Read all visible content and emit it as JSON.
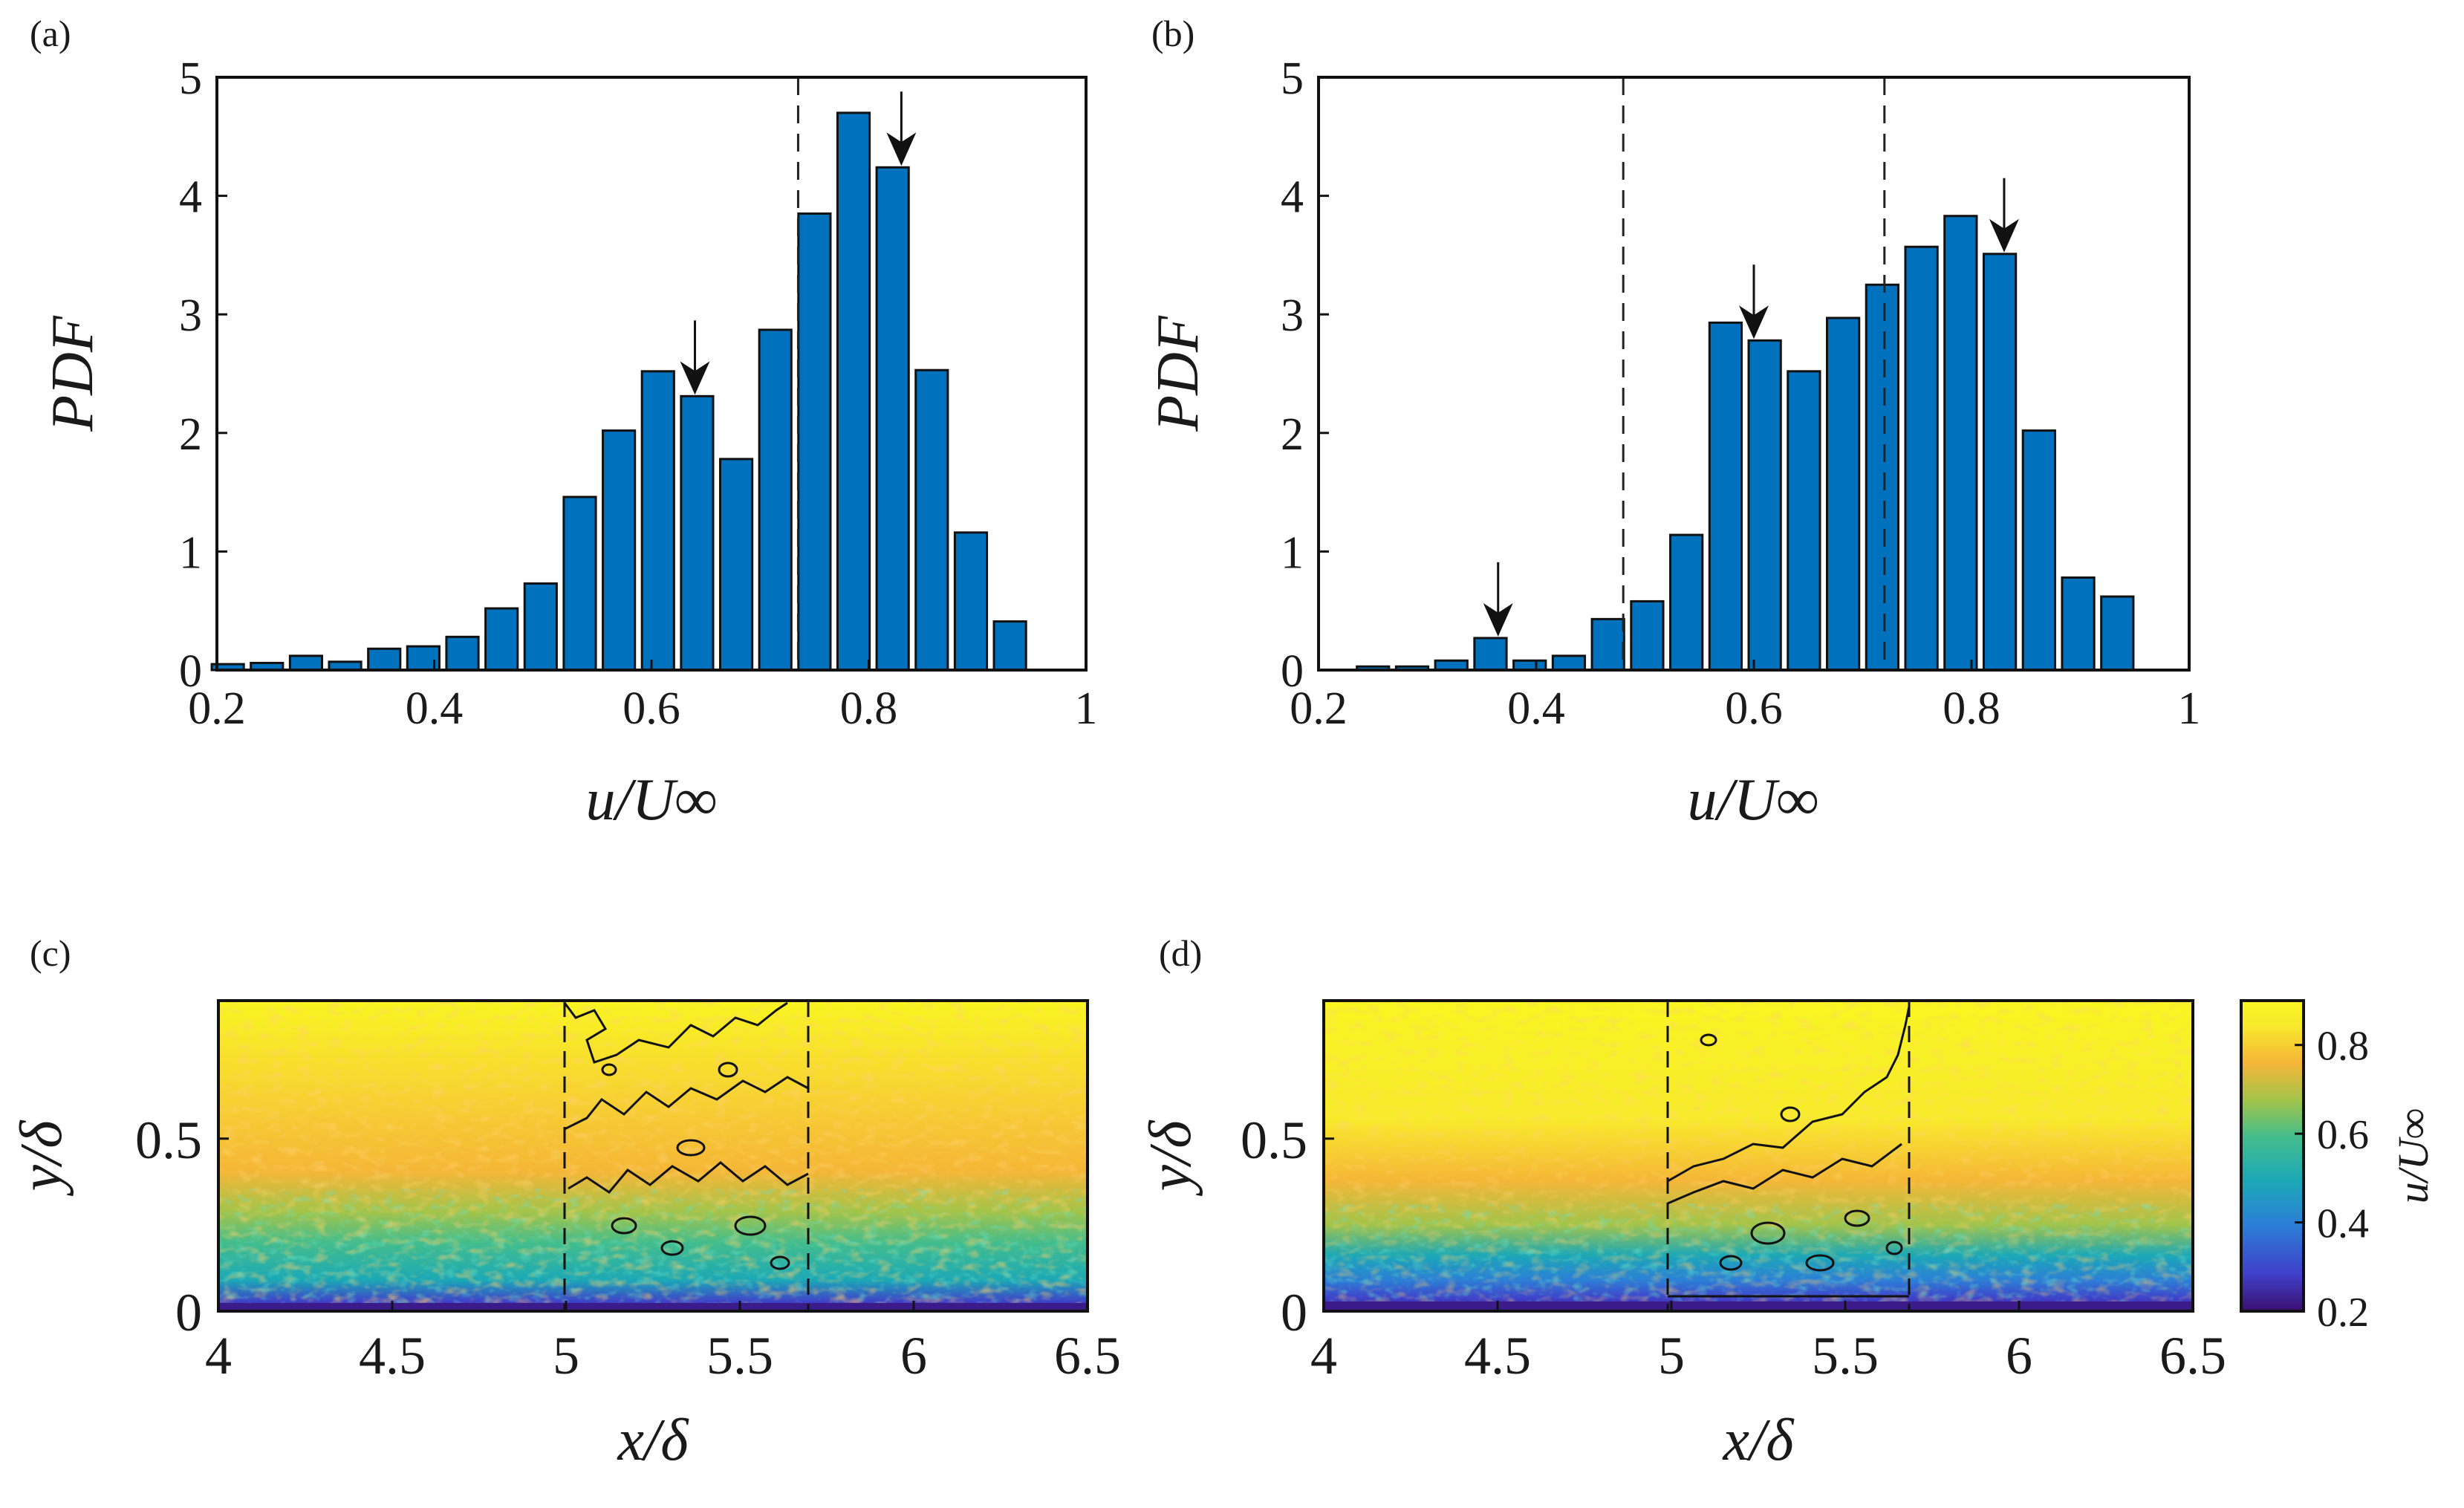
{
  "colors": {
    "bar": "#0072BD",
    "edge": "#111111",
    "dashed": "#222222",
    "colormap": [
      "#3b0f70",
      "#3f40c9",
      "#2c7fd6",
      "#1ba8b6",
      "#43bd8d",
      "#a3c44a",
      "#f5b637",
      "#f8ea2c",
      "#f9f521"
    ]
  },
  "chart_data": [
    {
      "panel": "(a)",
      "type": "bar",
      "title": "",
      "xlabel": "u/U∞",
      "ylabel": "PDF",
      "xlim": [
        0.2,
        1.0
      ],
      "ylim": [
        0,
        5
      ],
      "xticks": [
        "0.2",
        "0.4",
        "0.6",
        "0.8",
        "1"
      ],
      "yticks": [
        "0",
        "1",
        "2",
        "3",
        "4",
        "5"
      ],
      "bin_width": 0.036,
      "x": [
        0.21,
        0.246,
        0.282,
        0.318,
        0.354,
        0.39,
        0.426,
        0.462,
        0.498,
        0.534,
        0.57,
        0.606,
        0.642,
        0.678,
        0.714,
        0.75,
        0.786,
        0.822,
        0.858,
        0.894,
        0.93,
        0.966
      ],
      "values": [
        0.05,
        0.06,
        0.12,
        0.07,
        0.18,
        0.2,
        0.28,
        0.52,
        0.73,
        1.46,
        2.02,
        2.52,
        2.31,
        1.78,
        2.87,
        3.85,
        4.7,
        4.24,
        2.53,
        1.16,
        0.41,
        0.0
      ],
      "dashed_lines": [
        0.735
      ],
      "arrows": [
        0.64,
        0.83
      ]
    },
    {
      "panel": "(b)",
      "type": "bar",
      "title": "",
      "xlabel": "u/U∞",
      "ylabel": "PDF",
      "xlim": [
        0.2,
        1.0
      ],
      "ylim": [
        0,
        5
      ],
      "xticks": [
        "0.2",
        "0.4",
        "0.6",
        "0.8",
        "1"
      ],
      "yticks": [
        "0",
        "1",
        "2",
        "3",
        "4",
        "5"
      ],
      "bin_width": 0.036,
      "x": [
        0.25,
        0.286,
        0.322,
        0.358,
        0.394,
        0.43,
        0.466,
        0.502,
        0.538,
        0.574,
        0.61,
        0.646,
        0.682,
        0.718,
        0.754,
        0.79,
        0.826,
        0.862,
        0.898,
        0.934,
        0.97
      ],
      "values": [
        0.03,
        0.03,
        0.08,
        0.27,
        0.08,
        0.12,
        0.43,
        0.58,
        1.14,
        2.93,
        2.78,
        2.52,
        2.97,
        3.25,
        3.57,
        3.83,
        3.51,
        2.02,
        0.78,
        0.62,
        0.0
      ],
      "dashed_lines": [
        0.48,
        0.72
      ],
      "arrows": [
        0.365,
        0.6,
        0.83
      ]
    },
    {
      "panel": "(c)",
      "type": "heatmap",
      "xlabel": "x/δ",
      "ylabel": "y/δ",
      "xlim": [
        4,
        6.5
      ],
      "ylim": [
        0,
        0.9
      ],
      "xticks": [
        "4",
        "4.5",
        "5",
        "5.5",
        "6",
        "6.5"
      ],
      "yticks": [
        "0",
        "0.5"
      ],
      "window_x": [
        5.0,
        5.7
      ],
      "field": "u/U∞, yellow free stream above, low speed near wall"
    },
    {
      "panel": "(d)",
      "type": "heatmap",
      "xlabel": "x/δ",
      "ylabel": "y/δ",
      "xlim": [
        4,
        6.5
      ],
      "ylim": [
        0,
        0.9
      ],
      "xticks": [
        "4",
        "4.5",
        "5",
        "5.5",
        "6",
        "6.5"
      ],
      "yticks": [
        "0",
        "0.5"
      ],
      "window_x": [
        5.0,
        5.7
      ],
      "colorbar": {
        "label": "u/U∞",
        "range": [
          0.2,
          0.9
        ],
        "ticks": [
          "0.2",
          "0.4",
          "0.6",
          "0.8"
        ]
      }
    }
  ]
}
